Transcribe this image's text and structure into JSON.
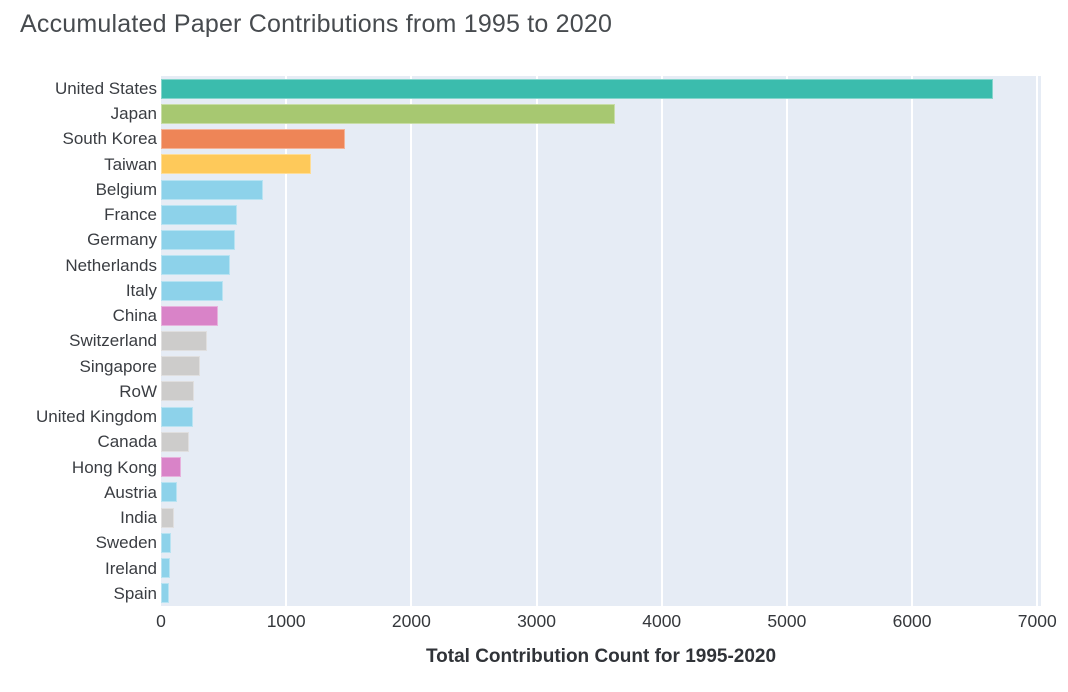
{
  "title": "Accumulated Paper Contributions from 1995 to 2020",
  "chart_data": {
    "type": "bar",
    "orientation": "horizontal",
    "title": "Accumulated Paper Contributions from 1995 to 2020",
    "xlabel": "Total Contribution Count for 1995-2020",
    "ylabel": "",
    "xlim": [
      0,
      7030
    ],
    "xticks": [
      0,
      1000,
      2000,
      3000,
      4000,
      5000,
      6000,
      7000
    ],
    "grid": true,
    "legend": "none",
    "plot_bg_color": "#e6ecf5",
    "gridline_color": "#ffffff",
    "categories": [
      "United States",
      "Japan",
      "South Korea",
      "Taiwan",
      "Belgium",
      "France",
      "Germany",
      "Netherlands",
      "Italy",
      "China",
      "Switzerland",
      "Singapore",
      "RoW",
      "United Kingdom",
      "Canada",
      "Hong Kong",
      "Austria",
      "India",
      "Sweden",
      "Ireland",
      "Spain"
    ],
    "values": [
      6650,
      3630,
      1470,
      1200,
      815,
      610,
      595,
      550,
      495,
      455,
      370,
      310,
      265,
      255,
      220,
      160,
      130,
      105,
      80,
      75,
      62
    ],
    "bar_colors": [
      "#3bbcad",
      "#a7c871",
      "#ee8557",
      "#fec95a",
      "#8dd2ea",
      "#8dd2ea",
      "#8dd2ea",
      "#8dd2ea",
      "#8dd2ea",
      "#d983c8",
      "#cdcccb",
      "#cdcccb",
      "#cdcccb",
      "#8dd2ea",
      "#cdcccb",
      "#d983c8",
      "#8dd2ea",
      "#cdcccb",
      "#8dd2ea",
      "#8dd2ea",
      "#8dd2ea"
    ],
    "color_legend": {
      "teal": "#3bbcad",
      "yellow_green": "#a7c871",
      "orange": "#ee8557",
      "yellow": "#fec95a",
      "sky_blue": "#8dd2ea",
      "pink": "#d983c8",
      "gray": "#cdcccb"
    }
  }
}
